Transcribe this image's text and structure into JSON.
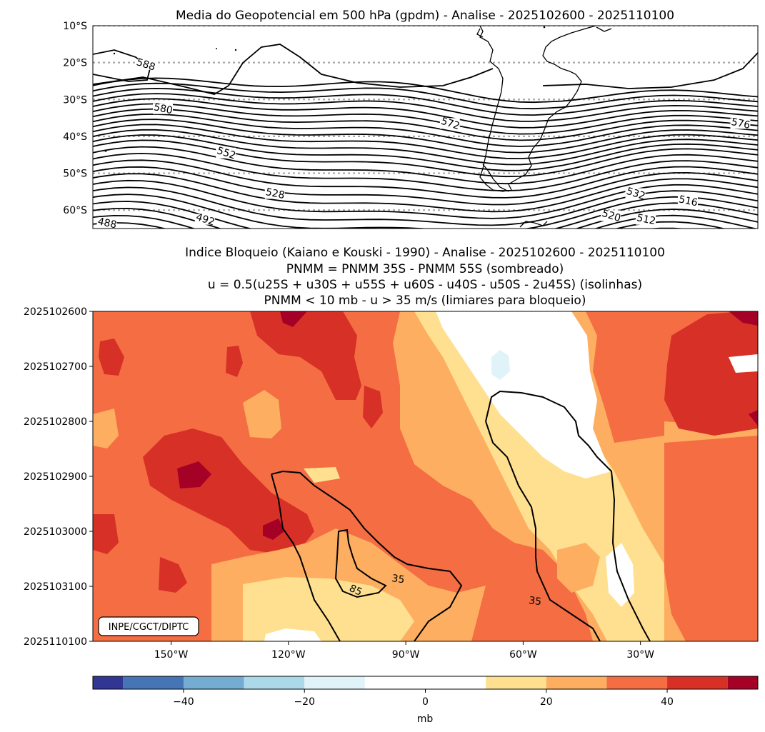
{
  "chart_data": [
    {
      "type": "contour-map",
      "title": "Media do Geopotencial em 500 hPa (gpdm) - Analise - 2025102600 - 2025110100",
      "lat_ticks": [
        "10°S",
        "20°S",
        "30°S",
        "40°S",
        "50°S",
        "60°S"
      ],
      "lat_values": [
        -10,
        -20,
        -30,
        -40,
        -50,
        -60
      ],
      "ylim": [
        -65,
        -10
      ],
      "gridlines": "dotted grey at latitude ticks",
      "contour_labels": [
        {
          "text": "588",
          "lon": -175,
          "lat": -21
        },
        {
          "text": "580",
          "lon": -170,
          "lat": -33
        },
        {
          "text": "572",
          "lon": -88,
          "lat": -37
        },
        {
          "text": "576",
          "lon": -5,
          "lat": -37
        },
        {
          "text": "552",
          "lon": -152,
          "lat": -45
        },
        {
          "text": "528",
          "lon": -138,
          "lat": -56
        },
        {
          "text": "532",
          "lon": -35,
          "lat": -56
        },
        {
          "text": "516",
          "lon": -20,
          "lat": -58
        },
        {
          "text": "520",
          "lon": -42,
          "lat": -62
        },
        {
          "text": "512",
          "lon": -32,
          "lat": -63
        },
        {
          "text": "492",
          "lon": -158,
          "lat": -63
        },
        {
          "text": "488",
          "lon": -186,
          "lat": -64
        }
      ]
    },
    {
      "type": "heatmap-contour",
      "title_lines": [
        "Indice Bloqueio (Kaiano e Kouski - 1990) - Analise - 2025102600 - 2025110100",
        "PNMM = PNMM 35S - PNMM 55S (sombreado)",
        "u = 0.5(u25S + u30S + u55S + u60S - u40S - u50S - 2u45S) (isolinhas)",
        "PNMM < 10 mb - u > 35 m/s (limiares para bloqueio)"
      ],
      "x_ticks": [
        "150°W",
        "120°W",
        "90°W",
        "60°W",
        "30°W"
      ],
      "x_tick_values": [
        -150,
        -120,
        -90,
        -60,
        -30
      ],
      "xlim": [
        -170,
        0
      ],
      "y_ticks": [
        "2025102600",
        "2025102700",
        "2025102800",
        "2025102900",
        "2025103000",
        "2025103100",
        "2025110100"
      ],
      "contour_labels": [
        {
          "text": "35",
          "lon": -92,
          "day": 4.9
        },
        {
          "text": "85",
          "lon": -103,
          "day": 5.1
        },
        {
          "text": "35",
          "lon": -57,
          "day": 5.3
        }
      ],
      "watermark": "INPE/CGCT/DIPTC",
      "colorbar": {
        "label": "mb",
        "ticks": [
          -40,
          -20,
          0,
          20,
          40
        ],
        "tick_labels": [
          "−40",
          "−20",
          "0",
          "20",
          "40"
        ],
        "range": [
          -55,
          55
        ],
        "levels": [
          -55,
          -50,
          -40,
          -30,
          -20,
          -10,
          0,
          10,
          20,
          30,
          40,
          50,
          55
        ],
        "colors": [
          "#313695",
          "#4575b4",
          "#74add1",
          "#abd9e9",
          "#e0f3f8",
          "#ffffff",
          "#ffffff",
          "#fee090",
          "#fdae61",
          "#f46d43",
          "#d73027",
          "#a50026"
        ]
      }
    }
  ]
}
